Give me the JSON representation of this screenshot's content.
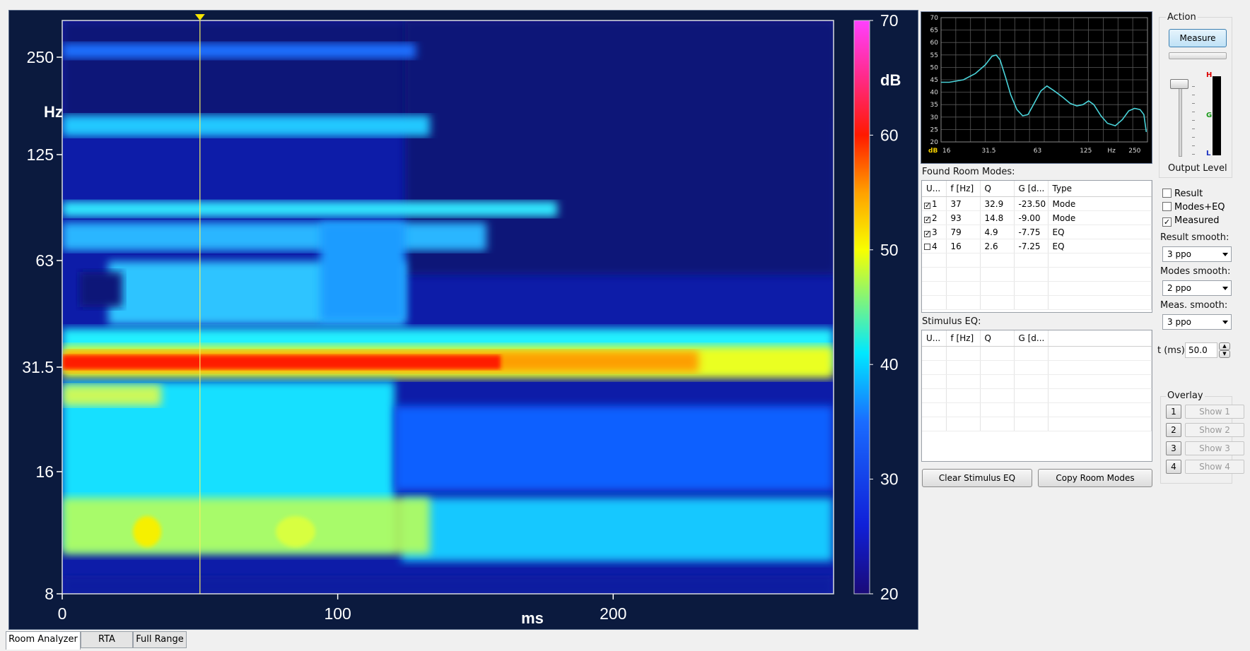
{
  "spectrogram": {
    "y_axis_unit": "Hz",
    "y_ticks": [
      "250",
      "125",
      "63",
      "31.5",
      "16",
      "8"
    ],
    "x_axis_unit": "ms",
    "x_ticks": [
      "0",
      "100",
      "200"
    ],
    "colorbar_unit": "dB",
    "colorbar_ticks": [
      "70",
      "60",
      "50",
      "40",
      "30",
      "20"
    ],
    "cursor_time_ms": 50
  },
  "mini_graph": {
    "y_ticks": [
      "70",
      "65",
      "60",
      "55",
      "50",
      "45",
      "40",
      "35",
      "30",
      "25",
      "20"
    ],
    "x_ticks": [
      "16",
      "31.5",
      "63",
      "125",
      "250"
    ],
    "y_unit": "dB",
    "x_unit": "Hz",
    "curve_color": "#4ad3d9"
  },
  "room_modes": {
    "label": "Found Room Modes:",
    "headers": [
      "U...",
      "f [Hz]",
      "Q",
      "G [d...",
      "Type"
    ],
    "rows": [
      {
        "use": "1",
        "checked": true,
        "f": "37",
        "q": "32.9",
        "g": "-23.50",
        "type": "Mode"
      },
      {
        "use": "2",
        "checked": true,
        "f": "93",
        "q": "14.8",
        "g": "-9.00",
        "type": "Mode"
      },
      {
        "use": "3",
        "checked": true,
        "f": "79",
        "q": "4.9",
        "g": "-7.75",
        "type": "EQ"
      },
      {
        "use": "4",
        "checked": false,
        "f": "16",
        "q": "2.6",
        "g": "-7.25",
        "type": "EQ"
      }
    ]
  },
  "stimulus_eq": {
    "label": "Stimulus EQ:",
    "headers": [
      "U...",
      "f [Hz]",
      "Q",
      "G [d..."
    ]
  },
  "buttons": {
    "clear_stimulus": "Clear Stimulus EQ",
    "copy_room_modes": "Copy Room Modes"
  },
  "action": {
    "title": "Action",
    "measure": "Measure",
    "output_level": "Output Level",
    "meter_h": "H",
    "meter_g": "G",
    "meter_l": "L"
  },
  "options": {
    "result": "Result",
    "modes_eq": "Modes+EQ",
    "measured": "Measured",
    "result_checked": false,
    "modes_eq_checked": false,
    "measured_checked": true,
    "result_smooth_label": "Result smooth:",
    "result_smooth_value": "3 ppo",
    "modes_smooth_label": "Modes smooth:",
    "modes_smooth_value": "2 ppo",
    "meas_smooth_label": "Meas. smooth:",
    "meas_smooth_value": "3 ppo",
    "t_label": "t (ms)",
    "t_value": "50.0"
  },
  "overlay": {
    "title": "Overlay",
    "items": [
      {
        "num": "1",
        "show": "Show 1"
      },
      {
        "num": "2",
        "show": "Show 2"
      },
      {
        "num": "3",
        "show": "Show 3"
      },
      {
        "num": "4",
        "show": "Show 4"
      }
    ]
  },
  "tabs": [
    "Room Analyzer",
    "RTA",
    "Full Range"
  ]
}
